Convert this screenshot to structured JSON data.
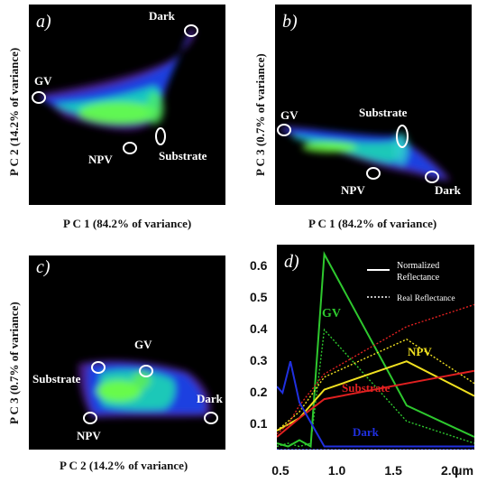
{
  "panels": {
    "a": {
      "label": "a)",
      "xlabel": "P C 1 (84.2% of variance)",
      "ylabel": "P C 2 (14.2% of variance)",
      "endmembers": [
        "Dark",
        "GV",
        "NPV",
        "Substrate"
      ]
    },
    "b": {
      "label": "b)",
      "xlabel": "P C 1 (84.2% of variance)",
      "ylabel": "P C 3 (0.7% of variance)",
      "endmembers": [
        "GV",
        "Substrate",
        "NPV",
        "Dark"
      ]
    },
    "c": {
      "label": "c)",
      "xlabel": "P C 2 (14.2% of variance)",
      "ylabel": "P C 3 (0.7% of variance)",
      "endmembers": [
        "GV",
        "Substrate",
        "NPV",
        "Dark"
      ]
    },
    "d": {
      "label": "d)",
      "legend": {
        "solid": "Normalized\nReflectance",
        "solid_line1": "Normalized",
        "solid_line2": "Reflectance",
        "dotted": "Real Reflectance"
      },
      "series_labels": {
        "GV": "GV",
        "NPV": "NPV",
        "Substrate": "Substrate",
        "Dark": "Dark"
      },
      "x_ticks": [
        "0.5",
        "1.0",
        "1.5",
        "2.0"
      ],
      "x_unit": "μm",
      "y_ticks": [
        "0.1",
        "0.2",
        "0.3",
        "0.4",
        "0.5",
        "0.6"
      ]
    }
  },
  "chart_data": [
    {
      "type": "scatter",
      "panel": "a",
      "xlabel": "P C 1 (84.2% of variance)",
      "ylabel": "P C 2 (14.2% of variance)",
      "annotations": [
        "Dark",
        "GV",
        "NPV",
        "Substrate"
      ]
    },
    {
      "type": "scatter",
      "panel": "b",
      "xlabel": "P C 1 (84.2% of variance)",
      "ylabel": "P C 3 (0.7% of variance)",
      "annotations": [
        "GV",
        "Substrate",
        "NPV",
        "Dark"
      ]
    },
    {
      "type": "scatter",
      "panel": "c",
      "xlabel": "P C 2 (14.2% of variance)",
      "ylabel": "P C 3 (0.7% of variance)",
      "annotations": [
        "GV",
        "Substrate",
        "NPV",
        "Dark"
      ]
    },
    {
      "type": "line",
      "panel": "d",
      "xlim": [
        0.45,
        2.2
      ],
      "ylim": [
        0.02,
        0.67
      ],
      "x_unit": "μm",
      "legend": [
        "Normalized Reflectance",
        "Real Reflectance"
      ],
      "legend_position": "top-right",
      "series": [
        {
          "name": "GV",
          "style": "solid",
          "color": "#2ec82e",
          "x": [
            0.45,
            0.55,
            0.65,
            0.75,
            0.87,
            1.6,
            2.2
          ],
          "y": [
            0.04,
            0.03,
            0.05,
            0.03,
            0.64,
            0.16,
            0.06
          ]
        },
        {
          "name": "GV",
          "style": "dotted",
          "color": "#2ec82e",
          "x": [
            0.45,
            0.55,
            0.65,
            0.75,
            0.87,
            1.6,
            2.2
          ],
          "y": [
            0.03,
            0.04,
            0.03,
            0.04,
            0.4,
            0.11,
            0.04
          ]
        },
        {
          "name": "NPV",
          "style": "solid",
          "color": "#f0e020",
          "x": [
            0.45,
            0.55,
            0.65,
            0.87,
            1.6,
            2.2
          ],
          "y": [
            0.08,
            0.1,
            0.12,
            0.21,
            0.3,
            0.19
          ]
        },
        {
          "name": "NPV",
          "style": "dotted",
          "color": "#f0e020",
          "x": [
            0.45,
            0.55,
            0.65,
            0.87,
            1.6,
            2.2
          ],
          "y": [
            0.08,
            0.11,
            0.14,
            0.25,
            0.37,
            0.23
          ]
        },
        {
          "name": "Substrate",
          "style": "solid",
          "color": "#e02020",
          "x": [
            0.45,
            0.55,
            0.65,
            0.87,
            1.6,
            2.2
          ],
          "y": [
            0.06,
            0.09,
            0.12,
            0.18,
            0.23,
            0.27
          ]
        },
        {
          "name": "Substrate",
          "style": "dotted",
          "color": "#e02020",
          "x": [
            0.45,
            0.55,
            0.65,
            0.87,
            1.6,
            2.2
          ],
          "y": [
            0.07,
            0.1,
            0.16,
            0.26,
            0.41,
            0.48
          ]
        },
        {
          "name": "Dark",
          "style": "solid",
          "color": "#2030e0",
          "x": [
            0.45,
            0.5,
            0.57,
            0.65,
            0.87,
            1.6,
            2.2
          ],
          "y": [
            0.22,
            0.2,
            0.3,
            0.17,
            0.03,
            0.03,
            0.03
          ]
        },
        {
          "name": "Dark",
          "style": "dotted",
          "color": "#2030e0",
          "x": [
            0.45,
            0.55,
            0.65,
            0.87,
            1.6,
            2.2
          ],
          "y": [
            0.02,
            0.02,
            0.02,
            0.02,
            0.02,
            0.02
          ]
        }
      ]
    }
  ]
}
